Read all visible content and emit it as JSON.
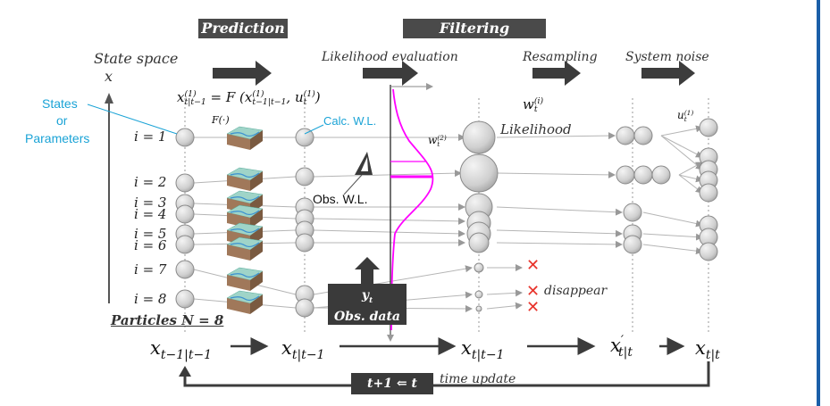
{
  "headers": {
    "prediction": "Prediction",
    "filtering": "Filtering"
  },
  "stages": {
    "likelihood_evaluation": "Likelihood evaluation",
    "resampling": "Resampling",
    "system_noise": "System noise"
  },
  "axis": {
    "state_space": "State space",
    "x": "x"
  },
  "left_labels": {
    "states": "States",
    "or": "or",
    "parameters": "Parameters"
  },
  "particle_labels": [
    "i = 1",
    "i = 2",
    "i = 3",
    "i = 4",
    "i = 5",
    "i = 6",
    "i = 7",
    "i = 8"
  ],
  "equation": {
    "lhs": "x",
    "lhs_sup": "(1)",
    "lhs_sub": "t|t−1",
    "eq": " = F (",
    "arg1": "x",
    "arg1_sup": "(1)",
    "arg1_sub": "t−1|t−1",
    "comma": ", ",
    "arg2": "u",
    "arg2_sup": "(1)",
    "arg2_sub": "t",
    "close": ")"
  },
  "f_label": "F(·)",
  "calc_wl": "Calc. W.L.",
  "obs_wl": "Obs. W.L.",
  "weight_label": {
    "w": "w",
    "sup": "(2)",
    "sub": "t"
  },
  "weight_i_label": {
    "w": "w",
    "sup": "(i)",
    "sub": "t"
  },
  "likelihood": "Likelihood",
  "noise_label": {
    "u": "u",
    "sup": "(1)",
    "sub": "t"
  },
  "obs_box": {
    "y": "y",
    "y_sub": "t",
    "text": "Obs. data"
  },
  "particles_n": "Particles N = 8",
  "disappear": "disappear",
  "bottom_states": {
    "s1": "x",
    "s1_sub": "t−1|t−1",
    "s2": "x",
    "s2_sub": "t|t−1",
    "s3": "x",
    "s3_sub": "t|t−1",
    "s4": "x",
    "s4_prime": "′",
    "s4_sub": "t|t",
    "s5": "x",
    "s5_sub": "t|t"
  },
  "time_box": "t+1 ⇐ t",
  "time_update": "time update",
  "colors": {
    "banner": "#4a4a4a",
    "likelihood_curve": "#ff00ff",
    "cyan_label": "#1aa3d6",
    "x_mark": "#e8322a",
    "particle_fill": "#d4d4d4",
    "arrow_dark": "#3c3c3c"
  },
  "icons": [
    "map-terrain-icon",
    "observation-sensor-icon",
    "x-mark-icon"
  ]
}
